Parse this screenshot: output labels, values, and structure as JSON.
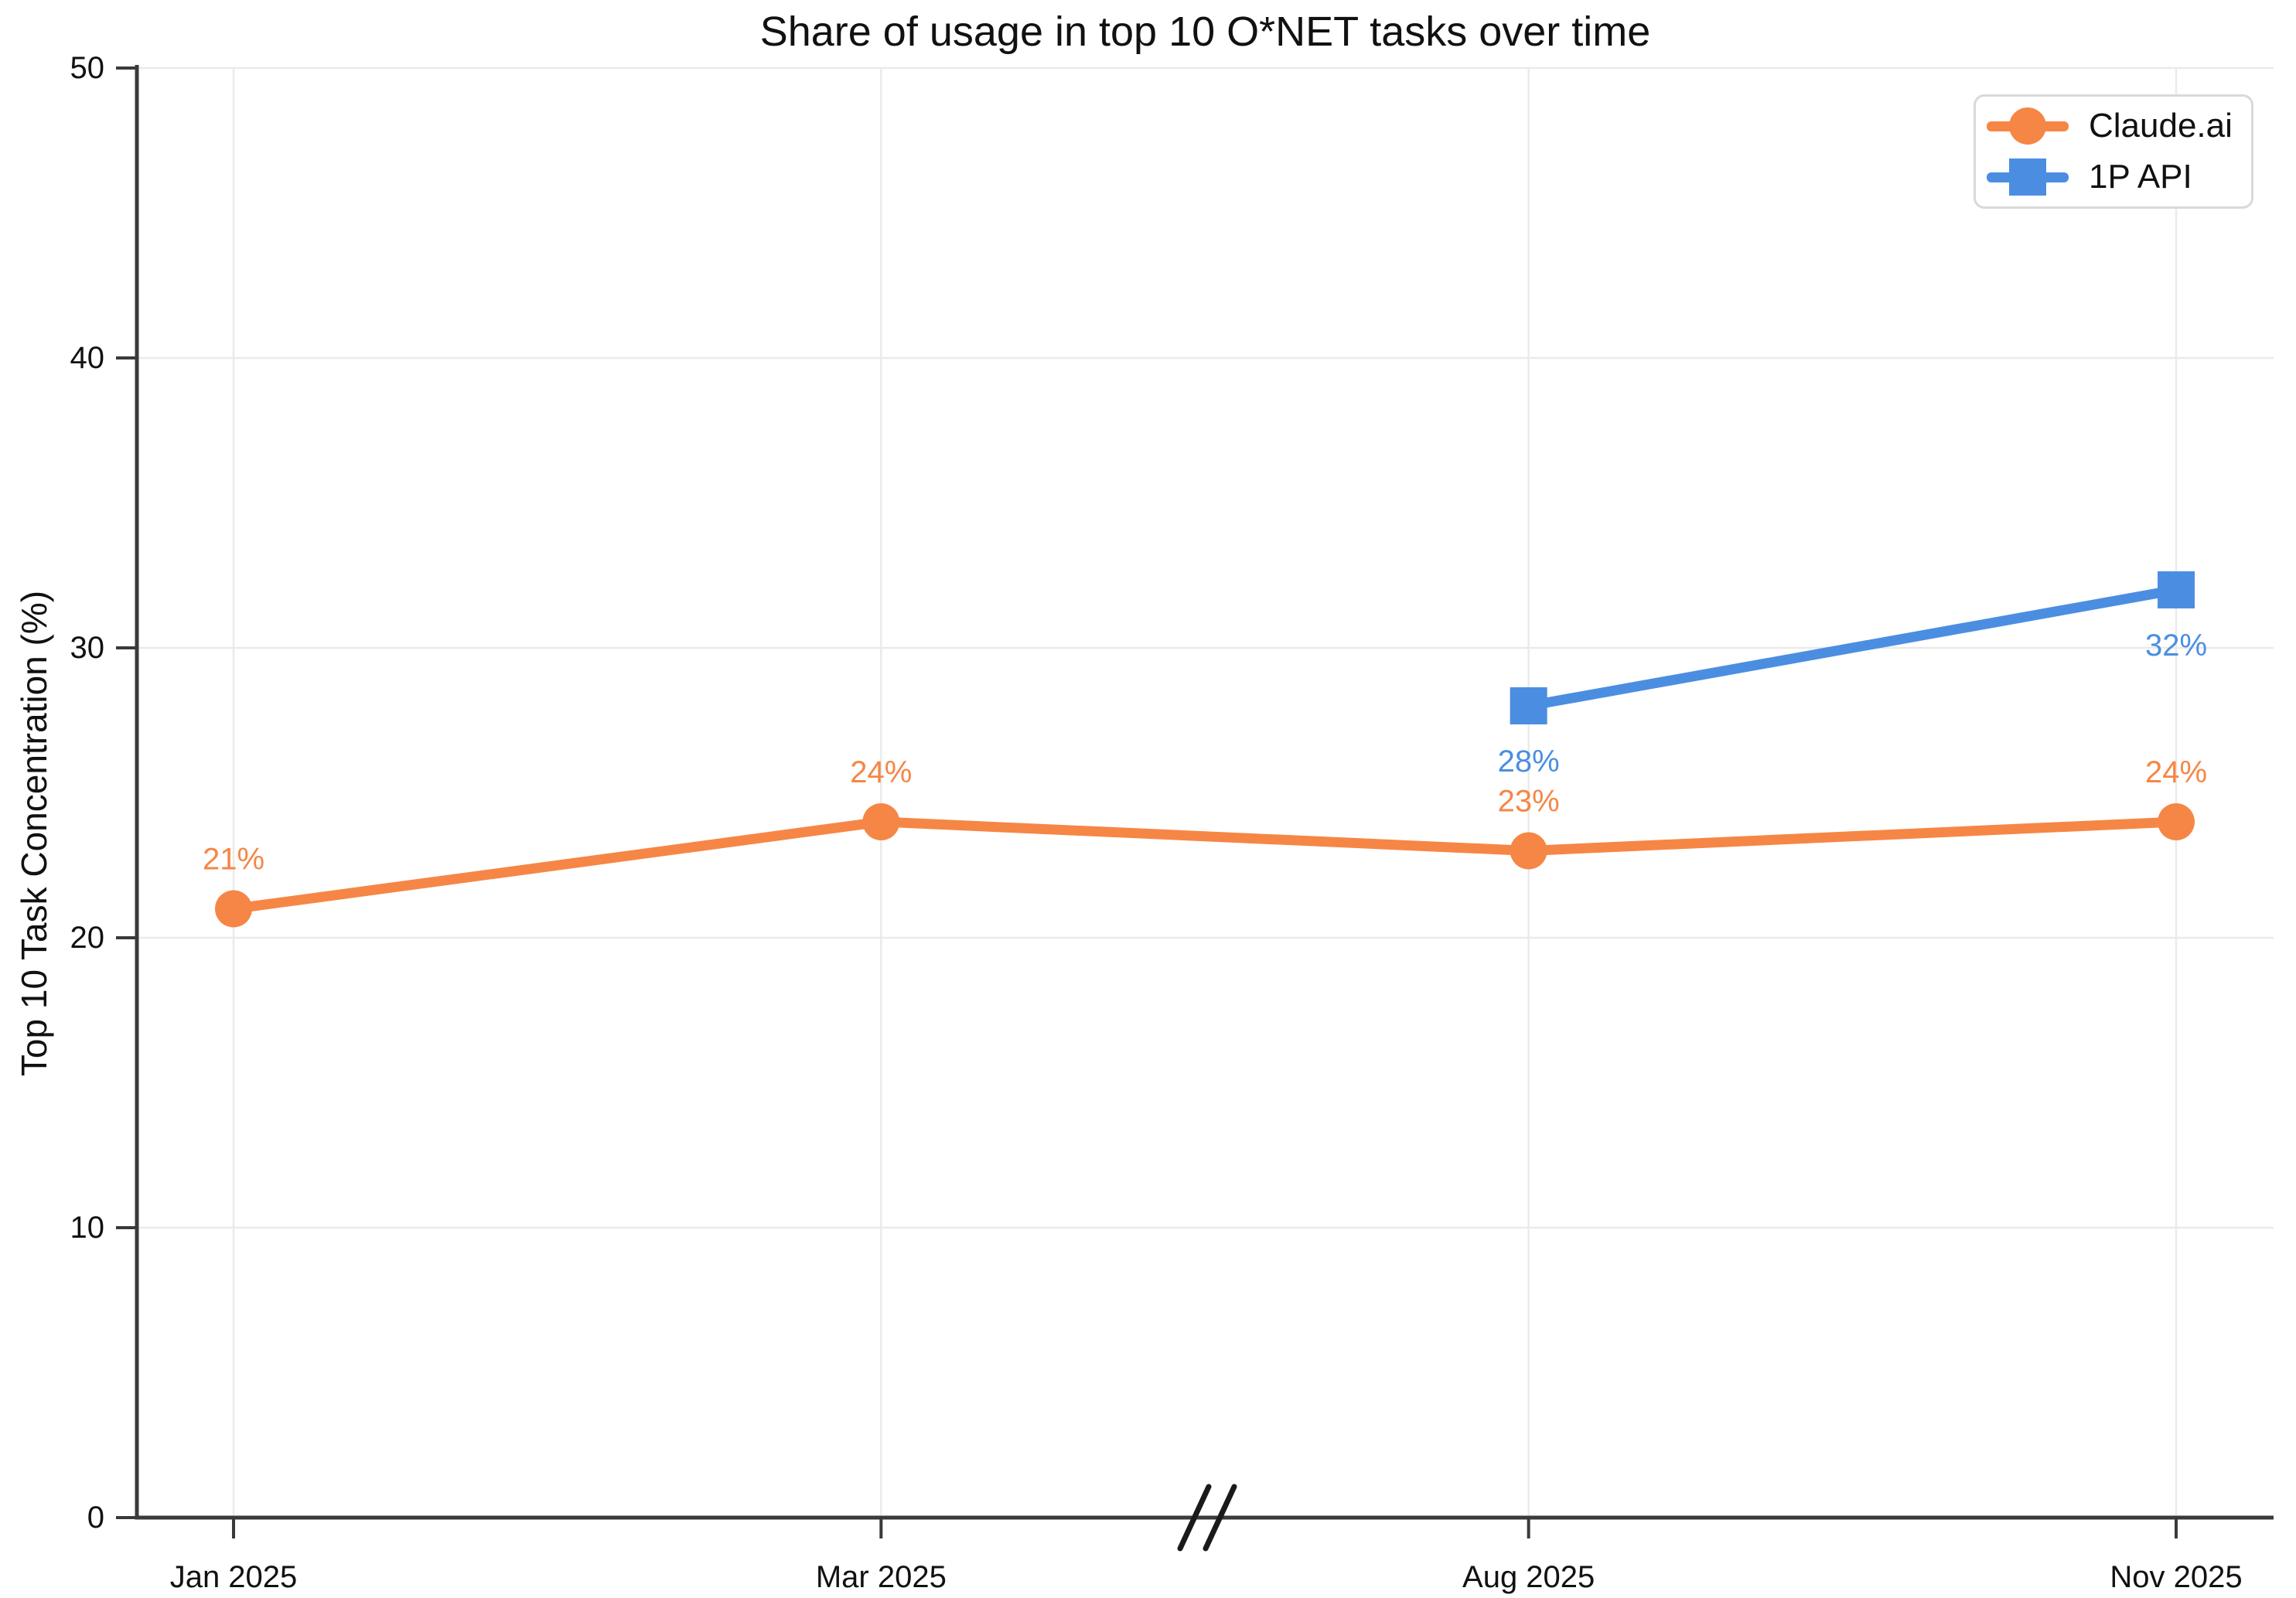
{
  "page": {
    "background": "#ffffff",
    "text_color": "#111111",
    "grid_color": "#eaeaea",
    "spine_color": "#3a3a3a",
    "legend_border_color": "#d9d9d9"
  },
  "chart_data": {
    "type": "line",
    "title": "Share of usage in top 10 O*NET tasks over time",
    "xlabel": "",
    "ylabel": "Top 10 Task Concentration (%)",
    "categories": [
      "Jan 2025",
      "Mar 2025",
      "Aug 2025",
      "Nov 2025"
    ],
    "y_ticks": [
      0,
      10,
      20,
      30,
      40,
      50
    ],
    "ylim": [
      0,
      50
    ],
    "grid": true,
    "legend_position": "top-right",
    "x_axis_break": {
      "between": [
        "Mar 2025",
        "Aug 2025"
      ],
      "symbol": "//"
    },
    "series": [
      {
        "name": "Claude.ai",
        "color": "#F68646",
        "marker": "circle",
        "label_side": "above",
        "x": [
          "Jan 2025",
          "Mar 2025",
          "Aug 2025",
          "Nov 2025"
        ],
        "values": [
          21,
          24,
          23,
          24
        ],
        "labels": [
          "21%",
          "24%",
          "23%",
          "24%"
        ]
      },
      {
        "name": "1P API",
        "color": "#4B8EE1",
        "marker": "square",
        "label_side": "below",
        "x": [
          "Aug 2025",
          "Nov 2025"
        ],
        "values": [
          28,
          32
        ],
        "labels": [
          "28%",
          "32%"
        ]
      }
    ]
  }
}
